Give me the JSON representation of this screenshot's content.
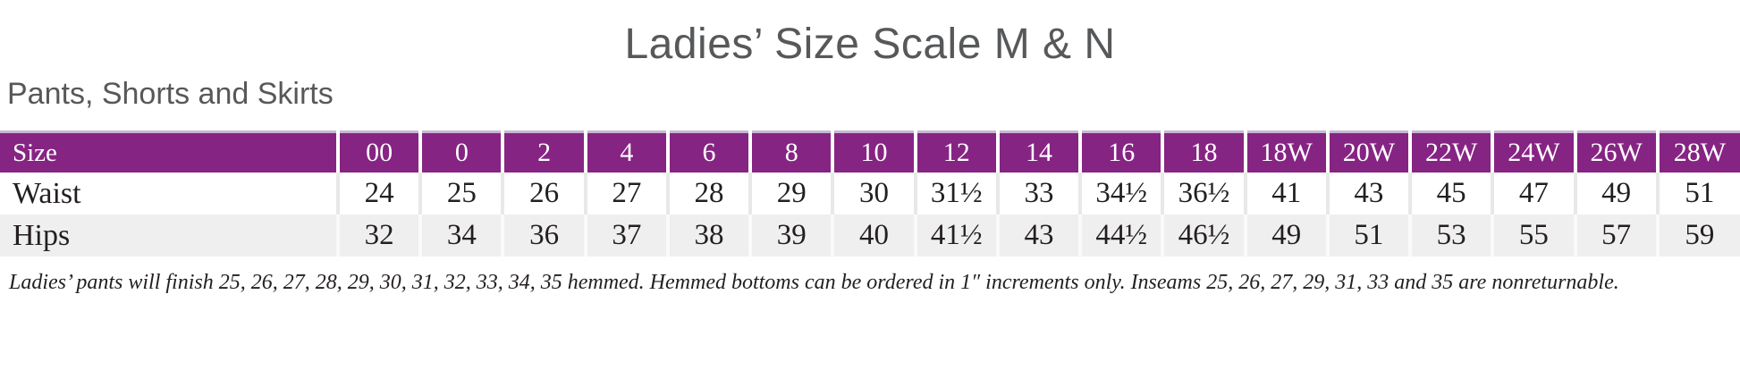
{
  "header": {
    "title": "Ladies’ Size Scale M & N",
    "subtitle": "Pants, Shorts and Skirts"
  },
  "table": {
    "corner_label": "Size",
    "columns": [
      "00",
      "0",
      "2",
      "4",
      "6",
      "8",
      "10",
      "12",
      "14",
      "16",
      "18",
      "18W",
      "20W",
      "22W",
      "24W",
      "26W",
      "28W"
    ],
    "rows": [
      {
        "label": "Waist",
        "values": [
          "24",
          "25",
          "26",
          "27",
          "28",
          "29",
          "30",
          "31½",
          "33",
          "34½",
          "36½",
          "41",
          "43",
          "45",
          "47",
          "49",
          "51"
        ]
      },
      {
        "label": "Hips",
        "values": [
          "32",
          "34",
          "36",
          "37",
          "38",
          "39",
          "40",
          "41½",
          "43",
          "44½",
          "46½",
          "49",
          "51",
          "53",
          "55",
          "57",
          "59"
        ]
      }
    ]
  },
  "footnote": {
    "text": "Ladies’ pants will finish 25, 26, 27, 28, 29, 30, 31, 32, 33, 34, 35 hemmed. Hemmed bottoms can be ordered in 1″ increments only. Inseams 25, 26, 27, 29, 31, 33 and 35 are nonreturnable."
  },
  "colors": {
    "header_bg": "#862483",
    "header_top_border": "#c9b7d3",
    "header_text": "#ffffff",
    "alt_row_bg": "#f0eff0",
    "body_text": "#231f20",
    "heading_text": "#57585a"
  }
}
